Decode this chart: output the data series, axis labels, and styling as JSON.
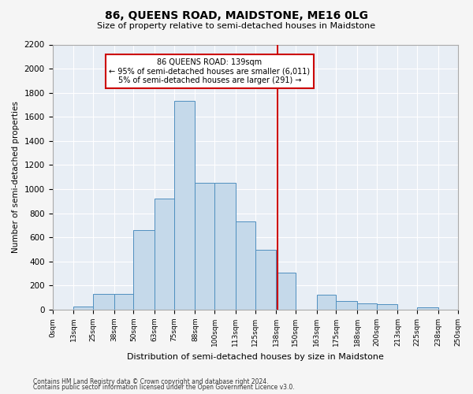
{
  "title": "86, QUEENS ROAD, MAIDSTONE, ME16 0LG",
  "subtitle": "Size of property relative to semi-detached houses in Maidstone",
  "xlabel": "Distribution of semi-detached houses by size in Maidstone",
  "ylabel": "Number of semi-detached properties",
  "bar_edges": [
    0,
    13,
    25,
    38,
    50,
    63,
    75,
    88,
    100,
    113,
    125,
    138,
    150,
    163,
    175,
    188,
    200,
    213,
    225,
    238,
    250
  ],
  "bar_heights": [
    0,
    25,
    130,
    130,
    660,
    920,
    1730,
    1050,
    1050,
    730,
    500,
    310,
    0,
    125,
    70,
    55,
    45,
    0,
    20,
    0
  ],
  "property_size": 139,
  "bar_color": "#c5d9ea",
  "bar_edge_color": "#4f8fbf",
  "vline_color": "#cc0000",
  "annotation_box_color": "#cc0000",
  "annotation_line1": "86 QUEENS ROAD: 139sqm",
  "annotation_line2": "← 95% of semi-detached houses are smaller (6,011)",
  "annotation_line3": "5% of semi-detached houses are larger (291) →",
  "footer1": "Contains HM Land Registry data © Crown copyright and database right 2024.",
  "footer2": "Contains public sector information licensed under the Open Government Licence v3.0.",
  "ylim": [
    0,
    2200
  ],
  "yticks": [
    0,
    200,
    400,
    600,
    800,
    1000,
    1200,
    1400,
    1600,
    1800,
    2000,
    2200
  ],
  "tick_labels": [
    "0sqm",
    "13sqm",
    "25sqm",
    "38sqm",
    "50sqm",
    "63sqm",
    "75sqm",
    "88sqm",
    "100sqm",
    "113sqm",
    "125sqm",
    "138sqm",
    "150sqm",
    "163sqm",
    "175sqm",
    "188sqm",
    "200sqm",
    "213sqm",
    "225sqm",
    "238sqm",
    "250sqm"
  ],
  "bg_color": "#e8eef5",
  "fig_bg_color": "#f5f5f5"
}
